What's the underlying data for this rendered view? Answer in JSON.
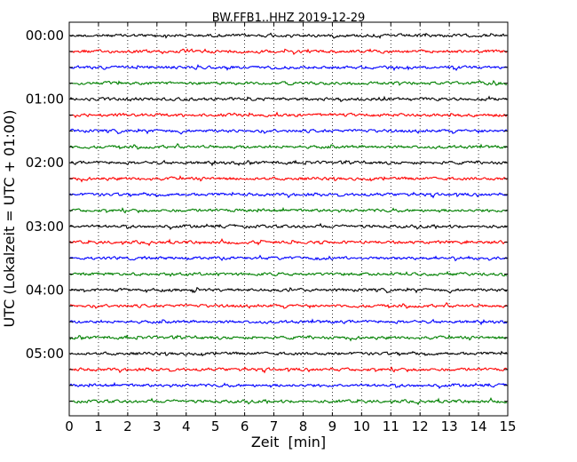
{
  "chart_data": {
    "type": "line",
    "title": "BW.FFB1..HHZ 2019-12-29",
    "xlabel": "Zeit  [min]",
    "ylabel": "UTC (Lokalzeit = UTC + 01:00)",
    "xlim": [
      0,
      15
    ],
    "x_ticks": [
      0,
      1,
      2,
      3,
      4,
      5,
      6,
      7,
      8,
      9,
      10,
      11,
      12,
      13,
      14,
      15
    ],
    "x_tick_labels": [
      "0",
      "1",
      "2",
      "3",
      "4",
      "5",
      "6",
      "7",
      "8",
      "9",
      "10",
      "11",
      "12",
      "13",
      "14",
      "15"
    ],
    "trace_count": 24,
    "trace_interval_min": 15,
    "y_tick_labels": [
      "00:00",
      "01:00",
      "02:00",
      "03:00",
      "04:00",
      "05:00"
    ],
    "trace_colors": [
      "#000000",
      "#ff0000",
      "#0000ff",
      "#008000"
    ],
    "grid": "vertical dotted"
  }
}
